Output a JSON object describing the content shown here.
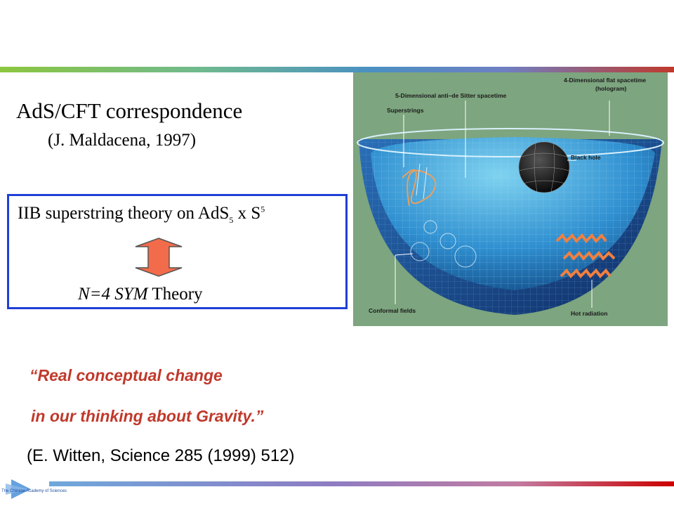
{
  "slide": {
    "title": "AdS/CFT  correspondence",
    "subtitle": "(J. Maldacena, 1997)"
  },
  "theory_box": {
    "line1_prefix": "IIB superstring  theory on  AdS",
    "sub5": "5",
    "line1_mid": " x S",
    "sup5": "5",
    "line2_italic": "N=4  SYM",
    "line2_rest": " Theory"
  },
  "figure": {
    "labels": {
      "flat": "4-Dimensional flat spacetime",
      "hologram": "(hologram)",
      "ads5": "5-Dimensional anti–de Sitter spacetime",
      "superstrings": "Superstrings",
      "black_hole": "Black hole",
      "conformal": "Conformal fields",
      "hot_radiation": "Hot radiation"
    }
  },
  "quote": {
    "line1": "“Real conceptual change",
    "line2": "in our thinking about Gravity.”"
  },
  "citation": "(E. Witten, Science 285 (1999) 512)",
  "logo": {
    "text": "The Chinese Academy of Sciences"
  },
  "colors": {
    "accent_red": "#c0392b",
    "box_border": "#1f3fd6",
    "arrow_fill": "#f26b4a"
  }
}
